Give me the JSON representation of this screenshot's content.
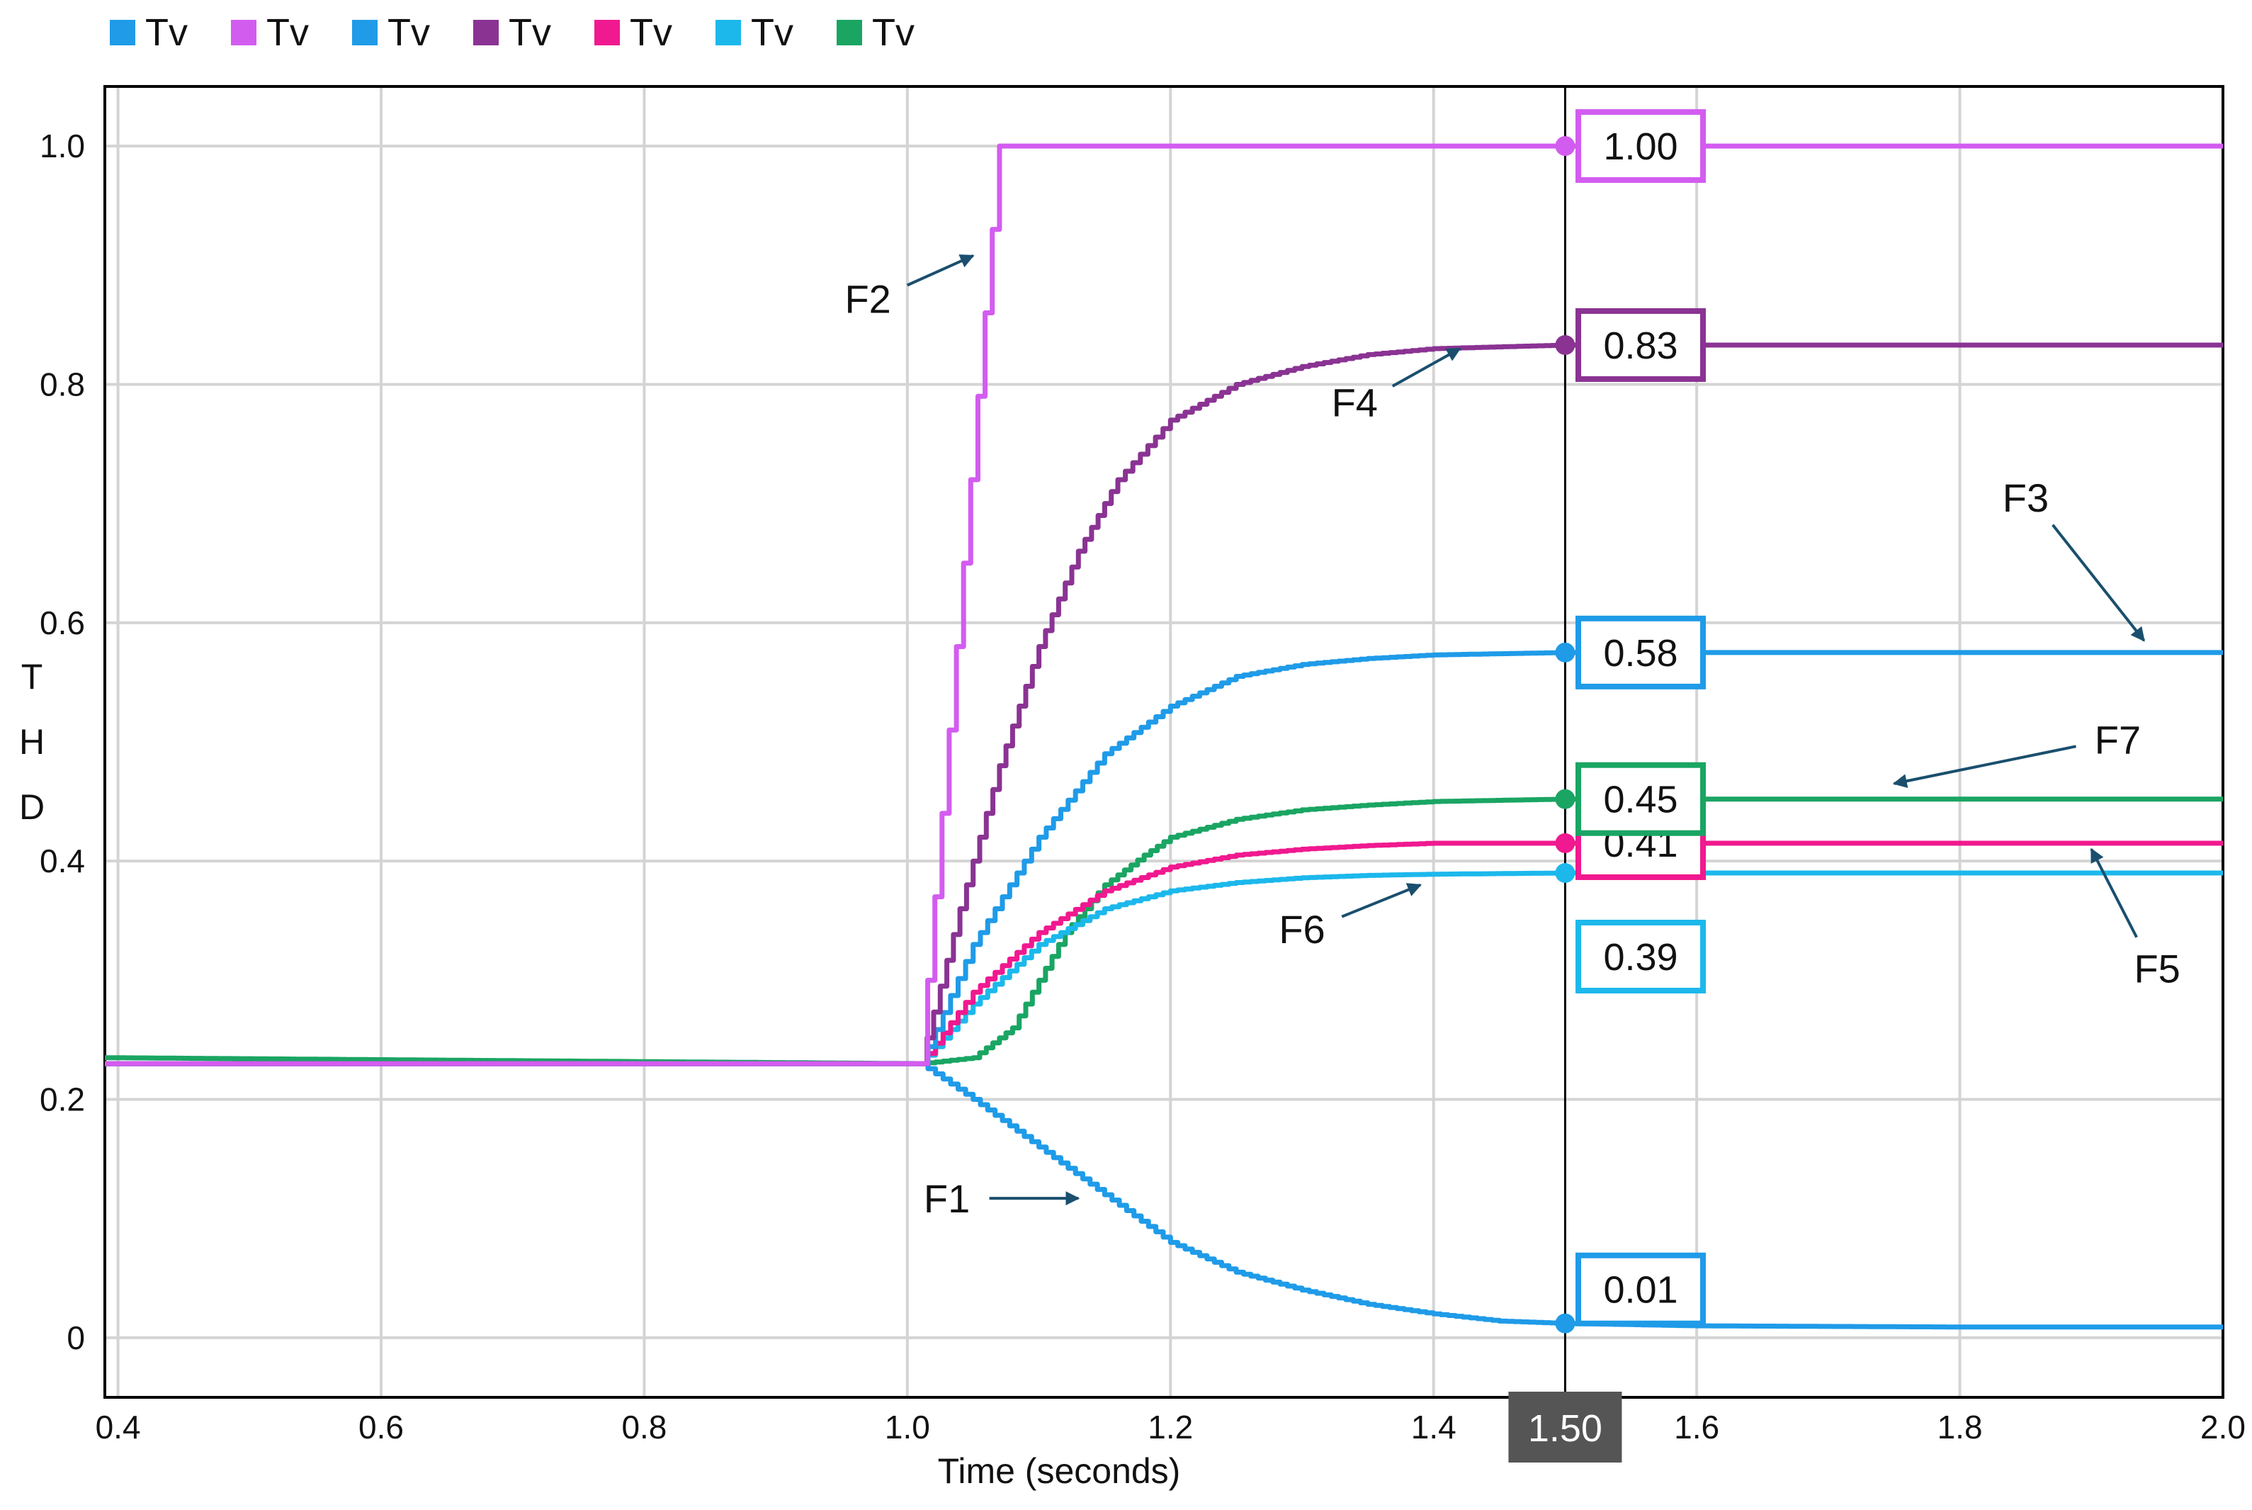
{
  "chart_data": {
    "type": "line",
    "title": "",
    "xlabel": "Time (seconds)",
    "ylabel": "THD",
    "xlim": [
      0.39,
      2.0
    ],
    "ylim": [
      -0.05,
      1.05
    ],
    "x_ticks": [
      "0.4",
      "0.6",
      "0.8",
      "1.0",
      "1.2",
      "1.4",
      "1.6",
      "1.8",
      "2.0"
    ],
    "y_ticks": [
      "0",
      "0.2",
      "0.4",
      "0.6",
      "0.8",
      "1.0"
    ],
    "x_tick_values": [
      0.4,
      0.6,
      0.8,
      1.0,
      1.2,
      1.4,
      1.6,
      1.8,
      2.0
    ],
    "y_tick_values": [
      0,
      0.2,
      0.4,
      0.6,
      0.8,
      1.0
    ],
    "grid": true,
    "legend_position": "top-left",
    "legend": [
      {
        "label": "Tv",
        "color": "#1f9be8"
      },
      {
        "label": "Tv",
        "color": "#d35cf0"
      },
      {
        "label": "Tv",
        "color": "#1f9be8"
      },
      {
        "label": "Tv",
        "color": "#8a3393"
      },
      {
        "label": "Tv",
        "color": "#f0198f"
      },
      {
        "label": "Tv",
        "color": "#1cb8ec"
      },
      {
        "label": "Tv",
        "color": "#1aa563"
      }
    ],
    "cursor": {
      "x": 1.5,
      "label": "1.50"
    },
    "series": [
      {
        "name": "F1",
        "color": "#1f9be8",
        "x": [
          0.39,
          1.01,
          1.05,
          1.1,
          1.15,
          1.2,
          1.25,
          1.3,
          1.35,
          1.4,
          1.45,
          1.5,
          1.6,
          1.8,
          2.0
        ],
        "y": [
          0.23,
          0.23,
          0.2,
          0.16,
          0.12,
          0.08,
          0.055,
          0.04,
          0.028,
          0.02,
          0.014,
          0.012,
          0.01,
          0.009,
          0.009
        ],
        "value_label": "0.01"
      },
      {
        "name": "F2",
        "color": "#d35cf0",
        "x": [
          0.39,
          1.01,
          1.07,
          1.5,
          2.0
        ],
        "y": [
          0.23,
          0.23,
          1.0,
          1.0,
          1.0
        ],
        "value_label": "1.00"
      },
      {
        "name": "F3",
        "color": "#1f9be8",
        "x": [
          0.39,
          1.01,
          1.05,
          1.1,
          1.15,
          1.2,
          1.25,
          1.3,
          1.35,
          1.4,
          1.5,
          1.6,
          1.8,
          2.0
        ],
        "y": [
          0.23,
          0.23,
          0.33,
          0.42,
          0.49,
          0.53,
          0.555,
          0.565,
          0.57,
          0.573,
          0.575,
          0.575,
          0.575,
          0.575
        ],
        "value_label": "0.58"
      },
      {
        "name": "F4",
        "color": "#8a3393",
        "x": [
          0.39,
          1.01,
          1.04,
          1.07,
          1.1,
          1.13,
          1.16,
          1.2,
          1.25,
          1.3,
          1.35,
          1.4,
          1.5,
          1.6,
          1.8,
          2.0
        ],
        "y": [
          0.23,
          0.23,
          0.36,
          0.48,
          0.58,
          0.66,
          0.72,
          0.77,
          0.8,
          0.815,
          0.825,
          0.83,
          0.833,
          0.833,
          0.833,
          0.833
        ],
        "value_label": "0.83"
      },
      {
        "name": "F5",
        "color": "#f0198f",
        "x": [
          0.39,
          1.01,
          1.05,
          1.1,
          1.15,
          1.2,
          1.25,
          1.3,
          1.35,
          1.4,
          1.5,
          1.6,
          1.8,
          2.0
        ],
        "y": [
          0.23,
          0.23,
          0.29,
          0.34,
          0.375,
          0.395,
          0.405,
          0.41,
          0.413,
          0.415,
          0.415,
          0.415,
          0.415,
          0.415
        ],
        "value_label": "0.41"
      },
      {
        "name": "F6",
        "color": "#1cb8ec",
        "x": [
          0.39,
          1.01,
          1.05,
          1.1,
          1.15,
          1.2,
          1.25,
          1.3,
          1.35,
          1.4,
          1.5,
          1.6,
          1.8,
          2.0
        ],
        "y": [
          0.23,
          0.23,
          0.28,
          0.33,
          0.36,
          0.375,
          0.382,
          0.386,
          0.388,
          0.389,
          0.39,
          0.39,
          0.39,
          0.39
        ],
        "value_label": "0.39"
      },
      {
        "name": "F7",
        "color": "#1aa563",
        "x": [
          0.39,
          1.01,
          1.05,
          1.08,
          1.1,
          1.12,
          1.15,
          1.18,
          1.2,
          1.25,
          1.3,
          1.35,
          1.4,
          1.5,
          1.6,
          1.8,
          2.0
        ],
        "y": [
          0.235,
          0.23,
          0.235,
          0.26,
          0.3,
          0.34,
          0.38,
          0.405,
          0.42,
          0.435,
          0.443,
          0.447,
          0.45,
          0.452,
          0.452,
          0.452,
          0.452
        ],
        "value_label": "0.45"
      }
    ],
    "annotations": [
      {
        "text": "F1",
        "x": 1.03,
        "y": 0.117,
        "arrow_to": [
          1.13,
          0.117
        ]
      },
      {
        "text": "F2",
        "x": 0.97,
        "y": 0.872,
        "arrow_to": [
          1.05,
          0.908
        ]
      },
      {
        "text": "F3",
        "x": 1.85,
        "y": 0.705,
        "arrow_to": [
          1.94,
          0.585
        ]
      },
      {
        "text": "F4",
        "x": 1.34,
        "y": 0.785,
        "arrow_to": [
          1.42,
          0.83
        ]
      },
      {
        "text": "F5",
        "x": 1.95,
        "y": 0.31,
        "arrow_to": [
          1.9,
          0.41
        ]
      },
      {
        "text": "F6",
        "x": 1.3,
        "y": 0.343,
        "arrow_to": [
          1.39,
          0.38
        ]
      },
      {
        "text": "F7",
        "x": 1.92,
        "y": 0.502,
        "arrow_to": [
          1.75,
          0.465
        ]
      }
    ]
  }
}
